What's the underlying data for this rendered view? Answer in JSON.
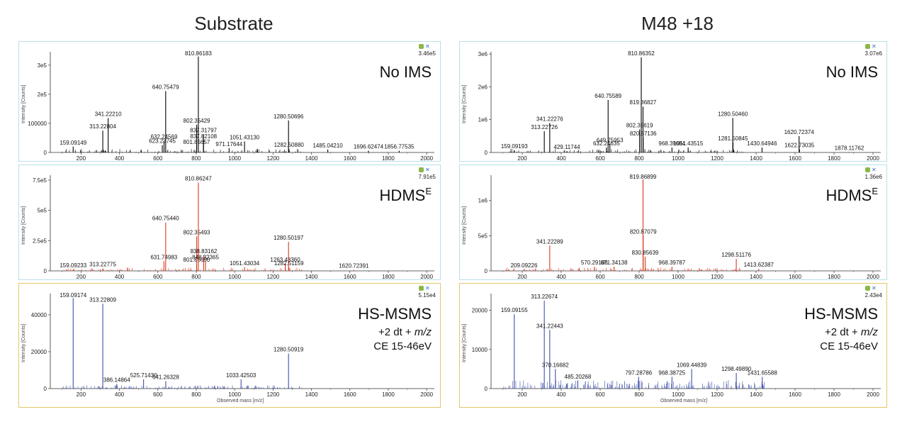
{
  "column_titles": [
    "Substrate",
    "M48 +18"
  ],
  "y_axis_label": "Intensity [Counts]",
  "x_axis_label": "Observed mass [m/z]",
  "hs_msms_sub": [
    "+2 dt + ",
    "m/z",
    "CE 15-46eV"
  ],
  "chart_data": [
    {
      "type": "bar",
      "id": "sub-noims",
      "column": "Substrate",
      "title": "No IMS",
      "max_label": "3.46e5",
      "color": "#000000",
      "xlim": [
        40,
        2040
      ],
      "ylim": [
        0,
        346000
      ],
      "xticks": [
        200,
        400,
        600,
        800,
        1000,
        1200,
        1400,
        1600,
        1800,
        2000
      ],
      "yticks": [
        {
          "v": 0,
          "t": "0"
        },
        {
          "v": 100000,
          "t": "100000"
        },
        {
          "v": 200000,
          "t": "2e5"
        },
        {
          "v": 300000,
          "t": "3e5"
        }
      ],
      "peaks": [
        {
          "x": 159.09149,
          "y": 20000,
          "label": "159.09149"
        },
        {
          "x": 313.22804,
          "y": 75000,
          "label": "313.22804"
        },
        {
          "x": 341.2221,
          "y": 118000,
          "label": "341.22210"
        },
        {
          "x": 623.23745,
          "y": 25000,
          "label": "623.23745"
        },
        {
          "x": 632.24569,
          "y": 40000,
          "label": "632.24569"
        },
        {
          "x": 640.75479,
          "y": 211000,
          "label": "640.75479"
        },
        {
          "x": 801.85657,
          "y": 22000,
          "label": "801.85657"
        },
        {
          "x": 802.35429,
          "y": 95000,
          "label": "802.35429"
        },
        {
          "x": 810.86183,
          "y": 330000,
          "label": "810.86183"
        },
        {
          "x": 837.31797,
          "y": 62000,
          "label": "837.31797"
        },
        {
          "x": 837.82108,
          "y": 42000,
          "label": "837.82108"
        },
        {
          "x": 971.17644,
          "y": 15000,
          "label": "971.17644"
        },
        {
          "x": 1051.4313,
          "y": 38000,
          "label": "1051.43130"
        },
        {
          "x": 1280.50696,
          "y": 110000,
          "label": "1280.50696"
        },
        {
          "x": 1282.5088,
          "y": 12000,
          "label": "1282.50880"
        },
        {
          "x": 1485.0421,
          "y": 10000,
          "label": "1485.04210"
        },
        {
          "x": 1696.62474,
          "y": 6000,
          "label": "1696.62474"
        },
        {
          "x": 1856.77535,
          "y": 6000,
          "label": "1856.77535"
        }
      ]
    },
    {
      "type": "bar",
      "id": "sub-hdmse",
      "column": "Substrate",
      "title": "HDMS",
      "title_sup": "E",
      "max_label": "7.91e5",
      "color": "#d9381e",
      "xlim": [
        40,
        2040
      ],
      "ylim": [
        0,
        791000
      ],
      "xticks": [
        200,
        400,
        600,
        800,
        1000,
        1200,
        1400,
        1600,
        1800,
        2000
      ],
      "yticks": [
        {
          "v": 0,
          "t": "0"
        },
        {
          "v": 250000,
          "t": "2.5e5"
        },
        {
          "v": 500000,
          "t": "5e5"
        },
        {
          "v": 750000,
          "t": "7.5e5"
        }
      ],
      "peaks": [
        {
          "x": 159.09233,
          "y": 12000,
          "label": "159.09233"
        },
        {
          "x": 313.22775,
          "y": 20000,
          "label": "313.22775"
        },
        {
          "x": 631.74983,
          "y": 80000,
          "label": "631.74983"
        },
        {
          "x": 640.7544,
          "y": 400000,
          "label": "640.75440"
        },
        {
          "x": 801.8569,
          "y": 60000,
          "label": "801.85690"
        },
        {
          "x": 802.35493,
          "y": 285000,
          "label": "802.35493"
        },
        {
          "x": 810.86247,
          "y": 730000,
          "label": "810.86247"
        },
        {
          "x": 838.83162,
          "y": 130000,
          "label": "838.83162"
        },
        {
          "x": 848.32365,
          "y": 80000,
          "label": "848.32365"
        },
        {
          "x": 1051.43034,
          "y": 30000,
          "label": "1051.43034"
        },
        {
          "x": 1263.4836,
          "y": 60000,
          "label": "1263.48360"
        },
        {
          "x": 1280.50197,
          "y": 240000,
          "label": "1280.50197"
        },
        {
          "x": 1282.51159,
          "y": 30000,
          "label": "1282.51159"
        },
        {
          "x": 1620.72391,
          "y": 8000,
          "label": "1620.72391"
        }
      ]
    },
    {
      "type": "bar",
      "id": "sub-hsmsms",
      "column": "Substrate",
      "title": "HS-MSMS",
      "max_label": "5.15e4",
      "color": "#3d4fa8",
      "xlim": [
        40,
        2040
      ],
      "ylim": [
        0,
        51500
      ],
      "xticks": [
        200,
        400,
        600,
        800,
        1000,
        1200,
        1400,
        1600,
        1800,
        2000
      ],
      "yticks": [
        {
          "v": 0,
          "t": "0"
        },
        {
          "v": 20000,
          "t": "20000"
        },
        {
          "v": 40000,
          "t": "40000"
        }
      ],
      "peaks": [
        {
          "x": 159.09174,
          "y": 49000,
          "label": "159.09174"
        },
        {
          "x": 313.22809,
          "y": 46000,
          "label": "313.22809"
        },
        {
          "x": 386.14864,
          "y": 2500,
          "label": "386.14864"
        },
        {
          "x": 525.7143,
          "y": 5000,
          "label": "525.71430"
        },
        {
          "x": 641.26328,
          "y": 4000,
          "label": "641.26328"
        },
        {
          "x": 1033.42503,
          "y": 5000,
          "label": "1033.42503"
        },
        {
          "x": 1280.50919,
          "y": 19000,
          "label": "1280.50919"
        }
      ]
    },
    {
      "type": "bar",
      "id": "m48-noims",
      "column": "M48 +18",
      "title": "No IMS",
      "max_label": "3.07e6",
      "color": "#000000",
      "xlim": [
        40,
        2040
      ],
      "ylim": [
        0,
        3070000
      ],
      "xticks": [
        200,
        400,
        600,
        800,
        1000,
        1200,
        1400,
        1600,
        1800,
        2000
      ],
      "yticks": [
        {
          "v": 0,
          "t": "0"
        },
        {
          "v": 1000000,
          "t": "1e6"
        },
        {
          "v": 2000000,
          "t": "2e6"
        },
        {
          "v": 3000000,
          "t": "3e6"
        }
      ],
      "peaks": [
        {
          "x": 159.09193,
          "y": 60000,
          "label": "159.09193"
        },
        {
          "x": 313.22726,
          "y": 650000,
          "label": "313.22726"
        },
        {
          "x": 341.22276,
          "y": 900000,
          "label": "341.22276"
        },
        {
          "x": 429.11744,
          "y": 40000,
          "label": "429.11744"
        },
        {
          "x": 632.24635,
          "y": 150000,
          "label": "632.24635"
        },
        {
          "x": 640.75589,
          "y": 1600000,
          "label": "640.75589"
        },
        {
          "x": 649.75953,
          "y": 250000,
          "label": "649.75953"
        },
        {
          "x": 802.35619,
          "y": 700000,
          "label": "802.35619"
        },
        {
          "x": 810.86352,
          "y": 2900000,
          "label": "810.86352"
        },
        {
          "x": 819.86827,
          "y": 1400000,
          "label": "819.86827"
        },
        {
          "x": 820.87136,
          "y": 450000,
          "label": "820.87136"
        },
        {
          "x": 968.39684,
          "y": 150000,
          "label": "968.39684"
        },
        {
          "x": 1051.43515,
          "y": 150000,
          "label": "1051.43515"
        },
        {
          "x": 1280.5046,
          "y": 1050000,
          "label": "1280.50460"
        },
        {
          "x": 1281.50845,
          "y": 300000,
          "label": "1281.50845"
        },
        {
          "x": 1430.64946,
          "y": 150000,
          "label": "1430.64946"
        },
        {
          "x": 1620.72374,
          "y": 500000,
          "label": "1620.72374"
        },
        {
          "x": 1622.73035,
          "y": 100000,
          "label": "1622.73035"
        },
        {
          "x": 1878.11762,
          "y": 10000,
          "label": "1878.11762"
        }
      ]
    },
    {
      "type": "bar",
      "id": "m48-hdmse",
      "column": "M48 +18",
      "title": "HDMS",
      "title_sup": "E",
      "max_label": "1.36e6",
      "color": "#d9381e",
      "xlim": [
        40,
        2040
      ],
      "ylim": [
        0,
        1360000
      ],
      "xticks": [
        200,
        400,
        600,
        800,
        1000,
        1200,
        1400,
        1600,
        1800,
        2000
      ],
      "yticks": [
        {
          "v": 0,
          "t": "0"
        },
        {
          "v": 500000,
          "t": "5e5"
        },
        {
          "v": 1000000,
          "t": "1e6"
        }
      ],
      "peaks": [
        {
          "x": 209.09226,
          "y": 20000,
          "label": "209.09226"
        },
        {
          "x": 341.22289,
          "y": 360000,
          "label": "341.22289"
        },
        {
          "x": 570.29186,
          "y": 60000,
          "label": "570.29186"
        },
        {
          "x": 671.34138,
          "y": 60000,
          "label": "671.34138"
        },
        {
          "x": 819.86899,
          "y": 1300000,
          "label": "819.86899"
        },
        {
          "x": 820.87079,
          "y": 500000,
          "label": "820.87079"
        },
        {
          "x": 830.85639,
          "y": 200000,
          "label": "830.85639"
        },
        {
          "x": 968.39787,
          "y": 60000,
          "label": "968.39787"
        },
        {
          "x": 1298.51176,
          "y": 170000,
          "label": "1298.51176"
        },
        {
          "x": 1413.62387,
          "y": 30000,
          "label": "1413.62387"
        }
      ]
    },
    {
      "type": "bar",
      "id": "m48-hsmsms",
      "column": "M48 +18",
      "title": "HS-MSMS",
      "max_label": "2.43e4",
      "color": "#3d4fa8",
      "xlim": [
        40,
        2040
      ],
      "ylim": [
        0,
        24300
      ],
      "xticks": [
        200,
        400,
        600,
        800,
        1000,
        1200,
        1400,
        1600,
        1800,
        2000
      ],
      "yticks": [
        {
          "v": 0,
          "t": "0"
        },
        {
          "v": 10000,
          "t": "10000"
        },
        {
          "v": 20000,
          "t": "20000"
        }
      ],
      "peaks": [
        {
          "x": 159.09155,
          "y": 19000,
          "label": "159.09155"
        },
        {
          "x": 313.22674,
          "y": 22500,
          "label": "313.22674"
        },
        {
          "x": 341.22443,
          "y": 15000,
          "label": "341.22443"
        },
        {
          "x": 370.16682,
          "y": 5000,
          "label": "370.16682"
        },
        {
          "x": 485.20268,
          "y": 2000,
          "label": "485.20268"
        },
        {
          "x": 797.28786,
          "y": 3000,
          "label": "797.28786"
        },
        {
          "x": 968.38725,
          "y": 3000,
          "label": "968.38725"
        },
        {
          "x": 1069.44839,
          "y": 5000,
          "label": "1069.44839"
        },
        {
          "x": 1298.4989,
          "y": 4000,
          "label": "1298.49890"
        },
        {
          "x": 1431.65588,
          "y": 3000,
          "label": "1431.65588"
        }
      ]
    }
  ]
}
